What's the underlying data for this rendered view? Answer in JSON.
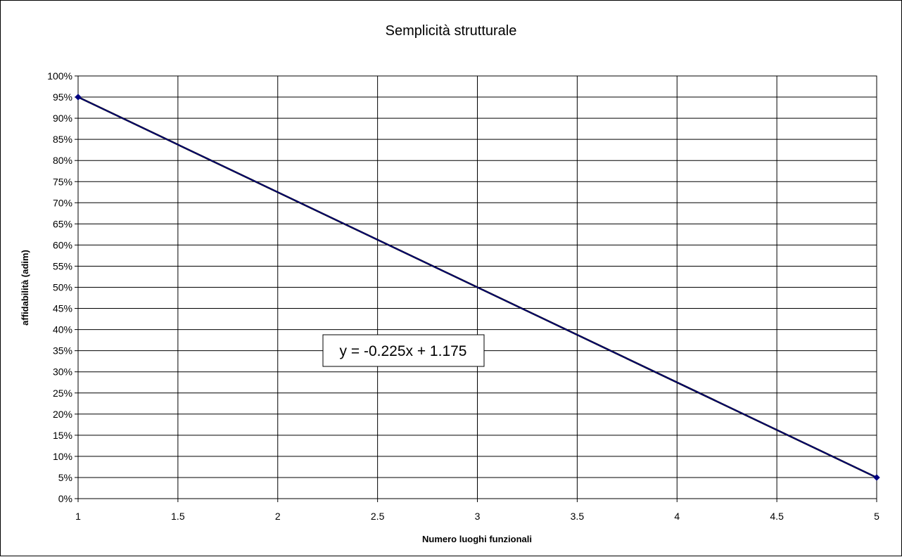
{
  "chart_data": {
    "type": "line",
    "title": "Semplicità strutturale",
    "xlabel": "Numero luoghi funzionali",
    "ylabel": "affidabilità (adim)",
    "xlim": [
      1,
      5
    ],
    "ylim": [
      0,
      1
    ],
    "x_ticks": [
      "1",
      "1.5",
      "2",
      "2.5",
      "3",
      "3.5",
      "4",
      "4.5",
      "5"
    ],
    "y_ticks": [
      "0%",
      "5%",
      "10%",
      "15%",
      "20%",
      "25%",
      "30%",
      "35%",
      "40%",
      "45%",
      "50%",
      "55%",
      "60%",
      "65%",
      "70%",
      "75%",
      "80%",
      "85%",
      "90%",
      "95%",
      "100%"
    ],
    "grid": true,
    "series": [
      {
        "x": [
          1,
          5
        ],
        "y": [
          0.95,
          0.05
        ],
        "color": "#000080"
      }
    ],
    "trendline": {
      "equation": "y = -0.225x + 1.175",
      "slope": -0.225,
      "intercept": 1.175,
      "color": "#000000"
    }
  }
}
